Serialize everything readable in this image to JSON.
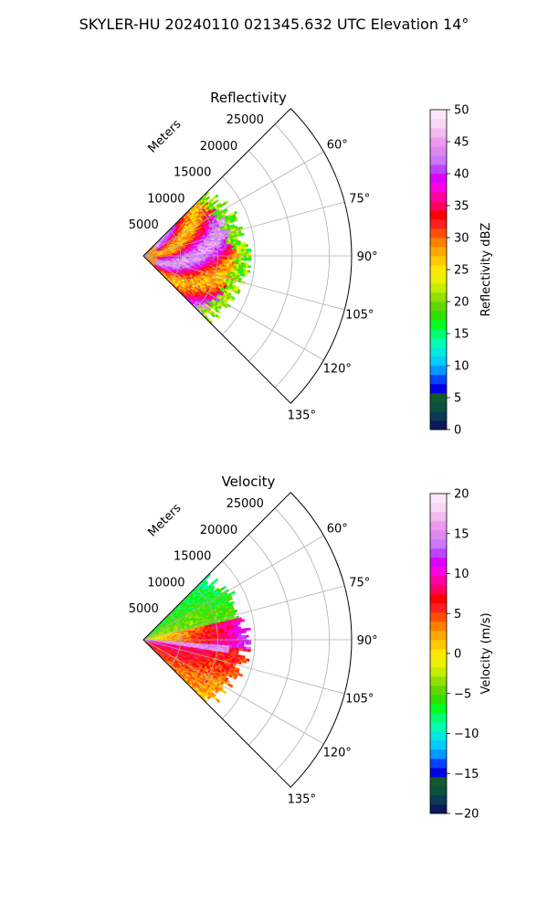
{
  "figure": {
    "suptitle": "SKYLER-HU  20240110  021345.632 UTC Elevation 14°"
  },
  "chart_data": [
    {
      "type": "heatmap",
      "projection": "polar-sector",
      "title": "Reflectivity",
      "radial_label": "Meters",
      "radial_ticks": [
        5000,
        10000,
        15000,
        20000,
        25000
      ],
      "radial_tick_labels": [
        "5000",
        "10000",
        "15000",
        "20000",
        "25000"
      ],
      "rlim": [
        0,
        28000
      ],
      "azimuth_range_deg": [
        45,
        135
      ],
      "azimuth_ticks": [
        "60°",
        "75°",
        "90°",
        "105°",
        "120°",
        "135°"
      ],
      "data_extent_m": 14500,
      "grid": true,
      "colorbar": {
        "label": "Reflectivity dBZ",
        "vmin": 0,
        "vmax": 50,
        "ticks": [
          "0",
          "5",
          "10",
          "15",
          "20",
          "25",
          "30",
          "35",
          "40",
          "45",
          "50"
        ],
        "colors": [
          "#0a1a5c",
          "#0c3a55",
          "#0e5040",
          "#105a30",
          "#0000e0",
          "#0044ff",
          "#0099ff",
          "#00ccff",
          "#00e8e0",
          "#00ffb0",
          "#00ff70",
          "#00ff20",
          "#30e000",
          "#60d800",
          "#90e000",
          "#c0f000",
          "#eef000",
          "#ffe800",
          "#ffc800",
          "#ffa800",
          "#ff8000",
          "#ff5000",
          "#ff2020",
          "#ff0000",
          "#ff0060",
          "#ff00a0",
          "#ff00e0",
          "#dd00ff",
          "#bb44ff",
          "#cc77ff",
          "#dd88ee",
          "#ee99ee",
          "#f4bbf0",
          "#f8d8f6",
          "#fde8fb"
        ]
      },
      "field_description_colors": [
        "#ffee00",
        "#ff0000",
        "#ff00ff",
        "#ff2020",
        "#ff4a00",
        "#ffa800",
        "#33ee00",
        "#00ff70",
        "#cc66ff",
        "#ee99ee"
      ]
    },
    {
      "type": "heatmap",
      "projection": "polar-sector",
      "title": "Velocity",
      "radial_label": "Meters",
      "radial_ticks": [
        5000,
        10000,
        15000,
        20000,
        25000
      ],
      "radial_tick_labels": [
        "5000",
        "10000",
        "15000",
        "20000",
        "25000"
      ],
      "rlim": [
        0,
        28000
      ],
      "azimuth_range_deg": [
        45,
        135
      ],
      "azimuth_ticks": [
        "60°",
        "75°",
        "90°",
        "105°",
        "120°",
        "135°"
      ],
      "data_extent_m": 14500,
      "grid": true,
      "colorbar": {
        "label": "Velocity (m/s)",
        "vmin": -20,
        "vmax": 20,
        "ticks": [
          "−20",
          "−15",
          "−10",
          "−5",
          "0",
          "5",
          "10",
          "15",
          "20"
        ],
        "colors": [
          "#0a1a5c",
          "#0c3a55",
          "#0e5040",
          "#105a30",
          "#0000e0",
          "#0044ff",
          "#0099ff",
          "#00ccff",
          "#00e8e0",
          "#00ffb0",
          "#00ff70",
          "#00ff20",
          "#30e000",
          "#60d800",
          "#90e000",
          "#c0f000",
          "#eef000",
          "#ffe800",
          "#ffc800",
          "#ffa800",
          "#ff8000",
          "#ff5000",
          "#ff2020",
          "#ff0000",
          "#ff0060",
          "#ff00a0",
          "#ff00e0",
          "#dd00ff",
          "#bb44ff",
          "#cc77ff",
          "#dd88ee",
          "#ee99ee",
          "#f4bbf0",
          "#f8d8f6",
          "#fde8fb"
        ]
      }
    }
  ]
}
